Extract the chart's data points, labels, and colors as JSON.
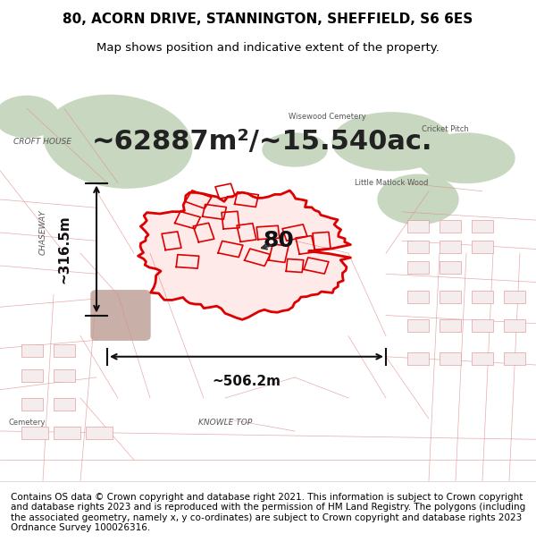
{
  "title_line1": "80, ACORN DRIVE, STANNINGTON, SHEFFIELD, S6 6ES",
  "title_line2": "Map shows position and indicative extent of the property.",
  "area_text": "~62887m²/~15.540ac.",
  "label_80": "80",
  "width_label": "~506.2m",
  "height_label": "~316.5m",
  "copyright_text": "Contains OS data © Crown copyright and database right 2021. This information is subject to Crown copyright and database rights 2023 and is reproduced with the permission of HM Land Registry. The polygons (including the associated geometry, namely x, y co-ordinates) are subject to Crown copyright and database rights 2023 Ordnance Survey 100026316.",
  "bg_color": "#f5f0eb",
  "map_area_bg": "#f0ede8",
  "red_color": "#dd0000",
  "title_fontsize": 11,
  "subtitle_fontsize": 9.5,
  "area_fontsize": 22,
  "label_fontsize": 18,
  "measure_fontsize": 11,
  "copyright_fontsize": 7.5,
  "green_area_color": "#c8d8c0",
  "road_color": "#ffffff",
  "road_stroke": "#ddcccc"
}
